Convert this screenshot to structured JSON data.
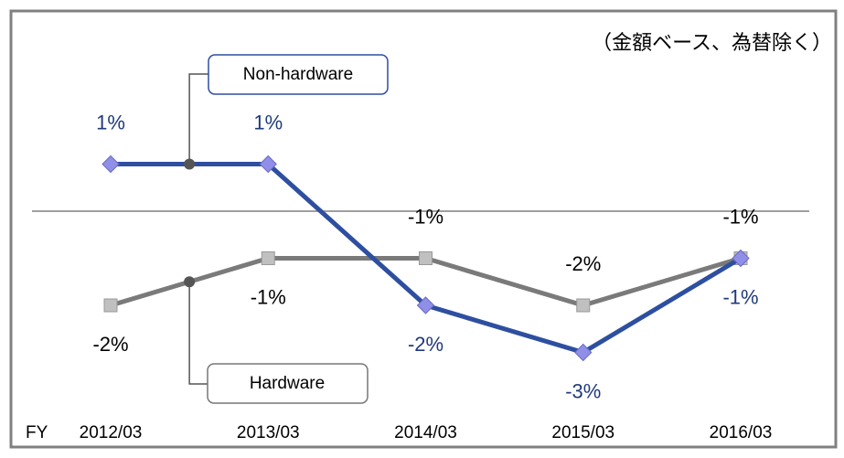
{
  "chart_data": {
    "type": "line",
    "note": "（金額ベース、為替除く）",
    "x_label": "FY",
    "categories": [
      "2012/03",
      "2013/03",
      "2014/03",
      "2015/03",
      "2016/03"
    ],
    "series": [
      {
        "name": "Non-hardware",
        "color": "#2e4fa0",
        "marker_color": "#8f8fe8",
        "label_color": "#1f3a7a",
        "values": [
          1,
          1,
          -2,
          -3,
          -1
        ],
        "value_labels": [
          "1%",
          "1%",
          "-2%",
          "-3%",
          "-1%"
        ]
      },
      {
        "name": "Hardware",
        "color": "#7a7a7a",
        "marker_color": "#c0c0c0",
        "label_color": "#000000",
        "values": [
          -2,
          -1,
          -1,
          -2,
          -1
        ],
        "value_labels": [
          "-2%",
          "-1%",
          "-1%",
          "-2%",
          "-1%"
        ]
      }
    ],
    "ylim": [
      -4,
      3
    ],
    "baseline": 0
  }
}
